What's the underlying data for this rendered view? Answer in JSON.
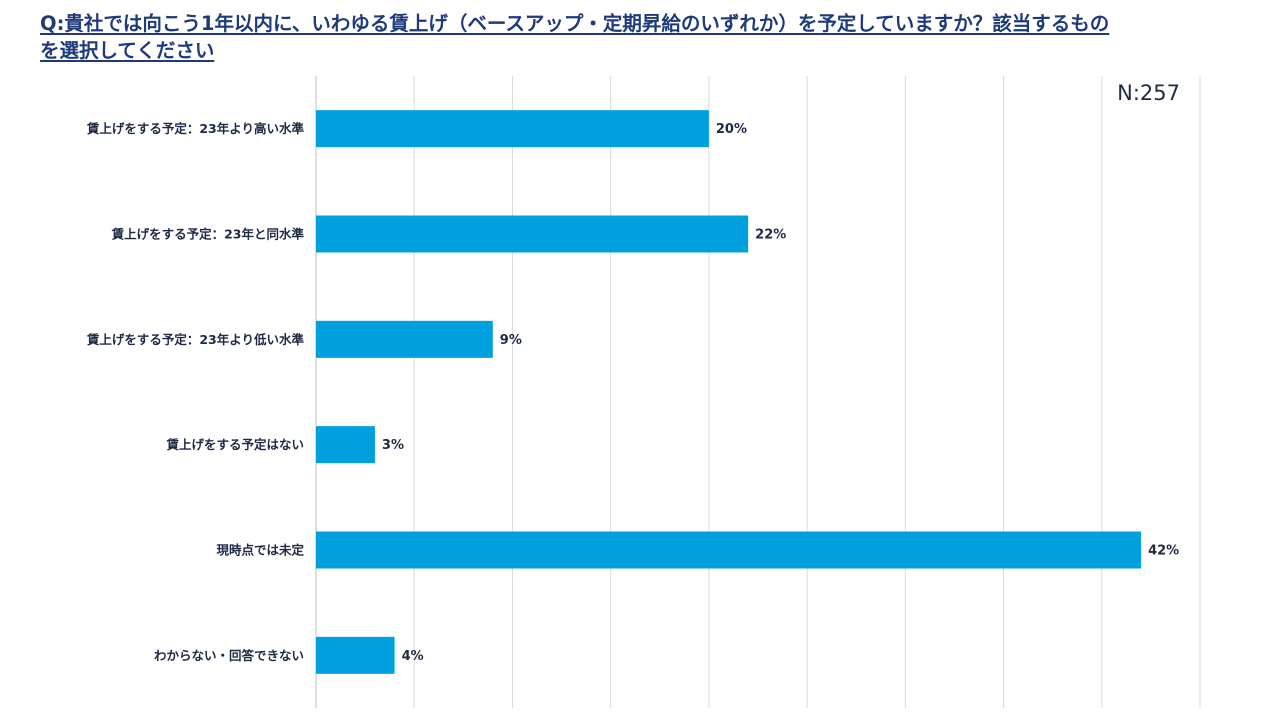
{
  "question": {
    "line1": "Q:貴社では向こう1年以内に、いわゆる賃上げ（ベースアップ・定期昇給のいずれか）を予定していますか？該当するもの",
    "line2": "を選択してください"
  },
  "chart_data": {
    "type": "bar",
    "orientation": "horizontal",
    "title": "Q:貴社では向こう1年以内に、いわゆる賃上げ（ベースアップ・定期昇給のいずれか）を予定していますか？該当するものを選択してください",
    "annotation": "N:257",
    "categories": [
      "賃上げをする予定：23年より高い水準",
      "賃上げをする予定：23年と同水準",
      "賃上げをする予定：23年より低い水準",
      "賃上げをする予定はない",
      "現時点では未定",
      "わからない・回答できない"
    ],
    "values": [
      20,
      22,
      9,
      3,
      42,
      4
    ],
    "value_labels": [
      "20%",
      "22%",
      "9%",
      "3%",
      "42%",
      "4%"
    ],
    "unit": "%",
    "xlim": [
      0,
      45
    ],
    "gridlines": [
      0,
      5,
      10,
      15,
      20,
      25,
      30,
      35,
      40,
      45
    ],
    "grid": true,
    "bar_color": "#009fde"
  }
}
